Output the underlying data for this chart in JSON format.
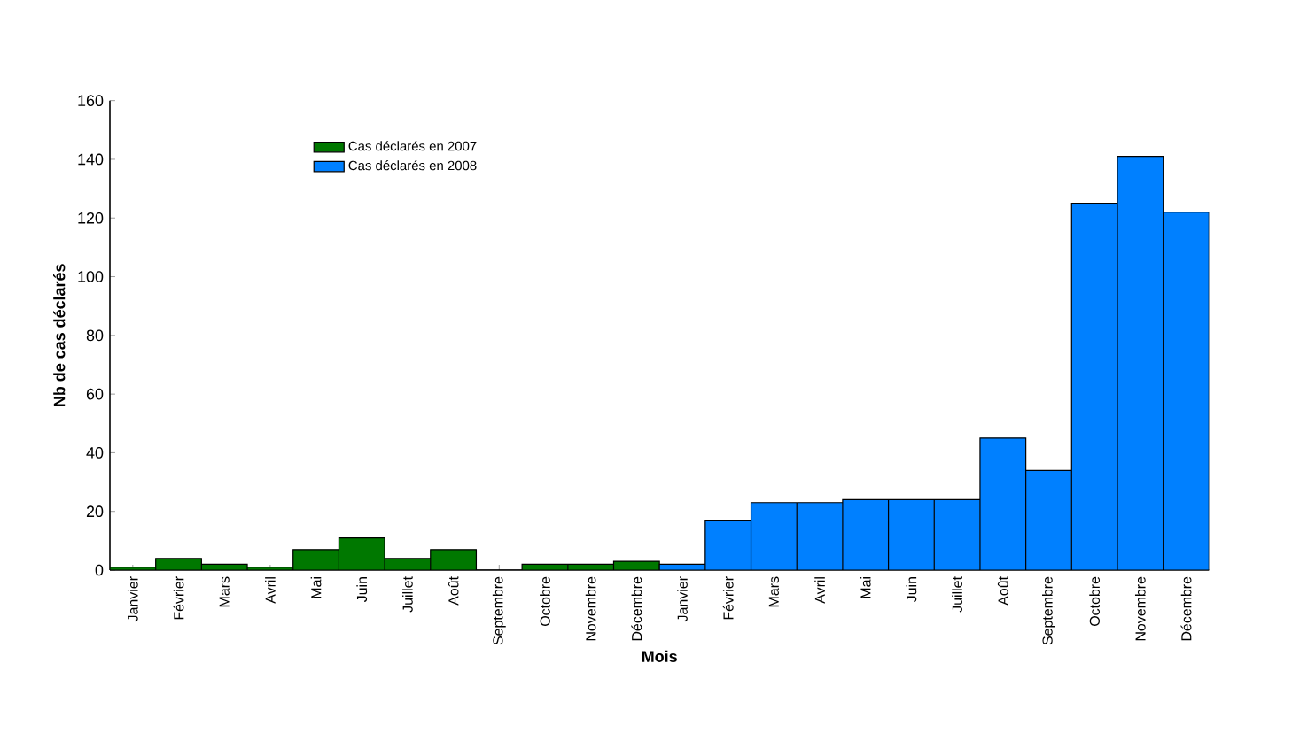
{
  "chart_data": {
    "type": "bar",
    "xlabel": "Mois",
    "ylabel": "Nb de cas déclarés",
    "categories": [
      "Janvier",
      "Février",
      "Mars",
      "Avril",
      "Mai",
      "Juin",
      "Juillet",
      "Août",
      "Septembre",
      "Octobre",
      "Novembre",
      "Décembre",
      "Janvier",
      "Février",
      "Mars",
      "Avril",
      "Mai",
      "Juin",
      "Juillet",
      "Août",
      "Septembre",
      "Octobre",
      "Novembre",
      "Décembre"
    ],
    "series": [
      {
        "name": "Cas déclarés en 2007",
        "color": "#007800",
        "values": [
          1,
          4,
          2,
          1,
          7,
          11,
          4,
          7,
          0,
          2,
          2,
          3,
          null,
          null,
          null,
          null,
          null,
          null,
          null,
          null,
          null,
          null,
          null,
          null
        ]
      },
      {
        "name": "Cas déclarés en 2008",
        "color": "#0080ff",
        "values": [
          null,
          null,
          null,
          null,
          null,
          null,
          null,
          null,
          null,
          null,
          null,
          null,
          2,
          17,
          23,
          23,
          24,
          24,
          24,
          45,
          34,
          125,
          141,
          122
        ]
      }
    ],
    "ylim": [
      0,
      160
    ],
    "yticks": [
      0,
      20,
      40,
      60,
      80,
      100,
      120,
      140,
      160
    ],
    "grid": false,
    "legend": "top left"
  }
}
